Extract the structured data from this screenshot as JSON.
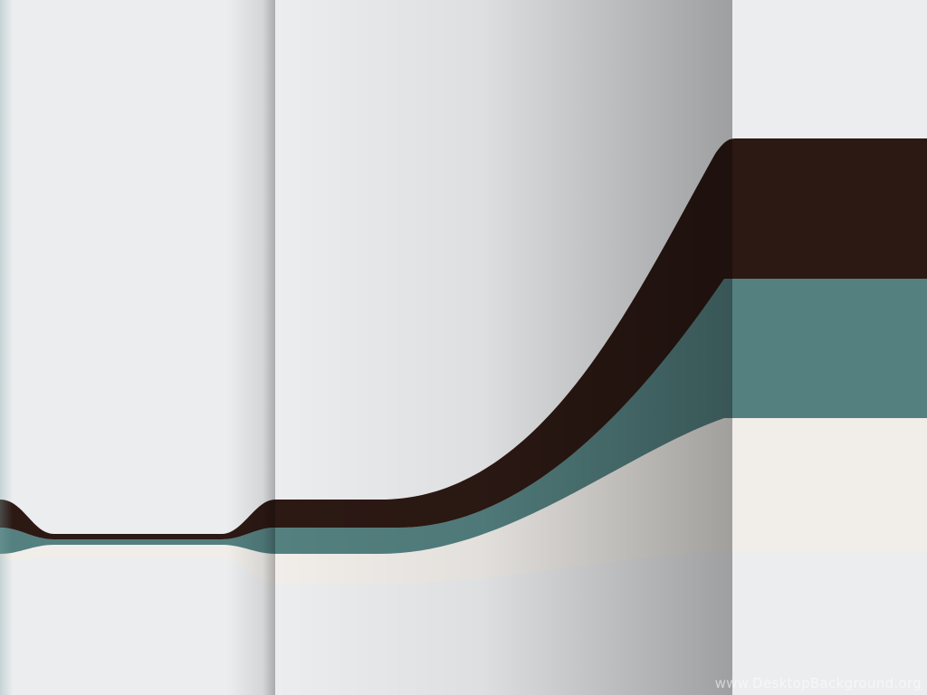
{
  "wallpaper": {
    "colors": {
      "background": "#ecedef",
      "dark_stripe": "#2c1914",
      "teal_stripe": "#548080",
      "cream_stripe": "#f1eeea"
    },
    "watermark_text": "www.DesktopBackground.org"
  }
}
